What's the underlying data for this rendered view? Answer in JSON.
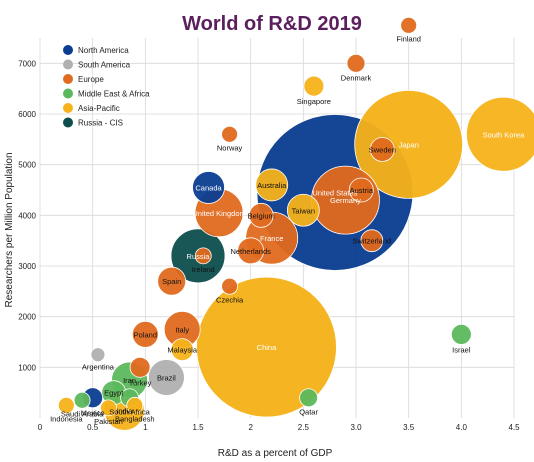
{
  "chart_data": {
    "type": "scatter",
    "title": "World of R&D 2019",
    "xlabel": "R&D as a percent of GDP",
    "ylabel": "Researchers per Million Population",
    "xlim": [
      0,
      4.5
    ],
    "ylim": [
      0,
      7500
    ],
    "xticks": [
      "0",
      "0.5",
      "1",
      "1.5",
      "2",
      "2.5",
      "3.0",
      "3.5",
      "4.0",
      "4.5"
    ],
    "yticks": [
      "1000",
      "2000",
      "3000",
      "4000",
      "5000",
      "6000",
      "7000"
    ],
    "grid": true,
    "legend_position": "top-left",
    "groups": [
      {
        "name": "North America",
        "color": "#0b3d91"
      },
      {
        "name": "South America",
        "color": "#b0b0b0"
      },
      {
        "name": "Europe",
        "color": "#e06a1e"
      },
      {
        "name": "Middle East & Africa",
        "color": "#5cb85c"
      },
      {
        "name": "Asia-Pacific",
        "color": "#f5b21a"
      },
      {
        "name": "Russia - CIS",
        "color": "#0d4d4d"
      }
    ],
    "points": [
      {
        "label": "United States",
        "group": "North America",
        "x": 2.8,
        "y": 4450,
        "size": 78
      },
      {
        "label": "Canada",
        "group": "North America",
        "x": 1.6,
        "y": 4550,
        "size": 16
      },
      {
        "label": "Mexico",
        "group": "North America",
        "x": 0.5,
        "y": 400,
        "size": 10
      },
      {
        "label": "Brazil",
        "group": "South America",
        "x": 1.2,
        "y": 800,
        "size": 18
      },
      {
        "label": "Argentina",
        "group": "South America",
        "x": 0.55,
        "y": 1250,
        "size": 7
      },
      {
        "label": "Finland",
        "group": "Europe",
        "x": 3.5,
        "y": 7750,
        "size": 8
      },
      {
        "label": "Denmark",
        "group": "Europe",
        "x": 3.0,
        "y": 7000,
        "size": 9
      },
      {
        "label": "Norway",
        "group": "Europe",
        "x": 1.8,
        "y": 5600,
        "size": 8
      },
      {
        "label": "Sweden",
        "group": "Europe",
        "x": 3.25,
        "y": 5300,
        "size": 12
      },
      {
        "label": "Austria",
        "group": "Europe",
        "x": 3.05,
        "y": 4500,
        "size": 12
      },
      {
        "label": "Germany",
        "group": "Europe",
        "x": 2.9,
        "y": 4300,
        "size": 34
      },
      {
        "label": "Switzerland",
        "group": "Europe",
        "x": 3.15,
        "y": 3500,
        "size": 11
      },
      {
        "label": "United Kingdom",
        "group": "Europe",
        "x": 1.7,
        "y": 4050,
        "size": 24
      },
      {
        "label": "Belgium",
        "group": "Europe",
        "x": 2.1,
        "y": 4000,
        "size": 12
      },
      {
        "label": "France",
        "group": "Europe",
        "x": 2.2,
        "y": 3550,
        "size": 26
      },
      {
        "label": "Netherlands",
        "group": "Europe",
        "x": 2.0,
        "y": 3300,
        "size": 13
      },
      {
        "label": "Ireland",
        "group": "Europe",
        "x": 1.55,
        "y": 3200,
        "size": 8
      },
      {
        "label": "Spain",
        "group": "Europe",
        "x": 1.25,
        "y": 2700,
        "size": 14
      },
      {
        "label": "Czechia",
        "group": "Europe",
        "x": 1.8,
        "y": 2600,
        "size": 8
      },
      {
        "label": "Poland",
        "group": "Europe",
        "x": 1.0,
        "y": 1650,
        "size": 13
      },
      {
        "label": "Italy",
        "group": "Europe",
        "x": 1.35,
        "y": 1750,
        "size": 18
      },
      {
        "label": "Turkey",
        "group": "Europe",
        "x": 0.95,
        "y": 1000,
        "size": 10
      },
      {
        "label": "Israel",
        "group": "Middle East & Africa",
        "x": 4.0,
        "y": 1650,
        "size": 10
      },
      {
        "label": "Qatar",
        "group": "Middle East & Africa",
        "x": 2.55,
        "y": 400,
        "size": 9
      },
      {
        "label": "Iran",
        "group": "Middle East & Africa",
        "x": 0.85,
        "y": 750,
        "size": 18
      },
      {
        "label": "Egypt",
        "group": "Middle East & Africa",
        "x": 0.7,
        "y": 500,
        "size": 12
      },
      {
        "label": "Saudi Arabia",
        "group": "Middle East & Africa",
        "x": 0.4,
        "y": 350,
        "size": 8
      },
      {
        "label": "South Africa",
        "group": "Middle East & Africa",
        "x": 0.85,
        "y": 400,
        "size": 9
      },
      {
        "label": "Japan",
        "group": "Asia-Pacific",
        "x": 3.5,
        "y": 5400,
        "size": 54
      },
      {
        "label": "South Korea",
        "group": "Asia-Pacific",
        "x": 4.4,
        "y": 5600,
        "size": 37
      },
      {
        "label": "Singapore",
        "group": "Asia-Pacific",
        "x": 2.6,
        "y": 6550,
        "size": 10
      },
      {
        "label": "Australia",
        "group": "Asia-Pacific",
        "x": 2.2,
        "y": 4600,
        "size": 16
      },
      {
        "label": "Taiwan",
        "group": "Asia-Pacific",
        "x": 2.5,
        "y": 4100,
        "size": 16
      },
      {
        "label": "China",
        "group": "Asia-Pacific",
        "x": 2.15,
        "y": 1400,
        "size": 70
      },
      {
        "label": "Malaysia",
        "group": "Asia-Pacific",
        "x": 1.35,
        "y": 1350,
        "size": 11
      },
      {
        "label": "India",
        "group": "Asia-Pacific",
        "x": 0.8,
        "y": 150,
        "size": 20
      },
      {
        "label": "Indonesia",
        "group": "Asia-Pacific",
        "x": 0.25,
        "y": 250,
        "size": 8
      },
      {
        "label": "Pakistan",
        "group": "Asia-Pacific",
        "x": 0.65,
        "y": 200,
        "size": 8
      },
      {
        "label": "Bangladesh",
        "group": "Asia-Pacific",
        "x": 0.9,
        "y": 250,
        "size": 8
      },
      {
        "label": "Russia",
        "group": "Russia - CIS",
        "x": 1.5,
        "y": 3200,
        "size": 27
      }
    ]
  }
}
